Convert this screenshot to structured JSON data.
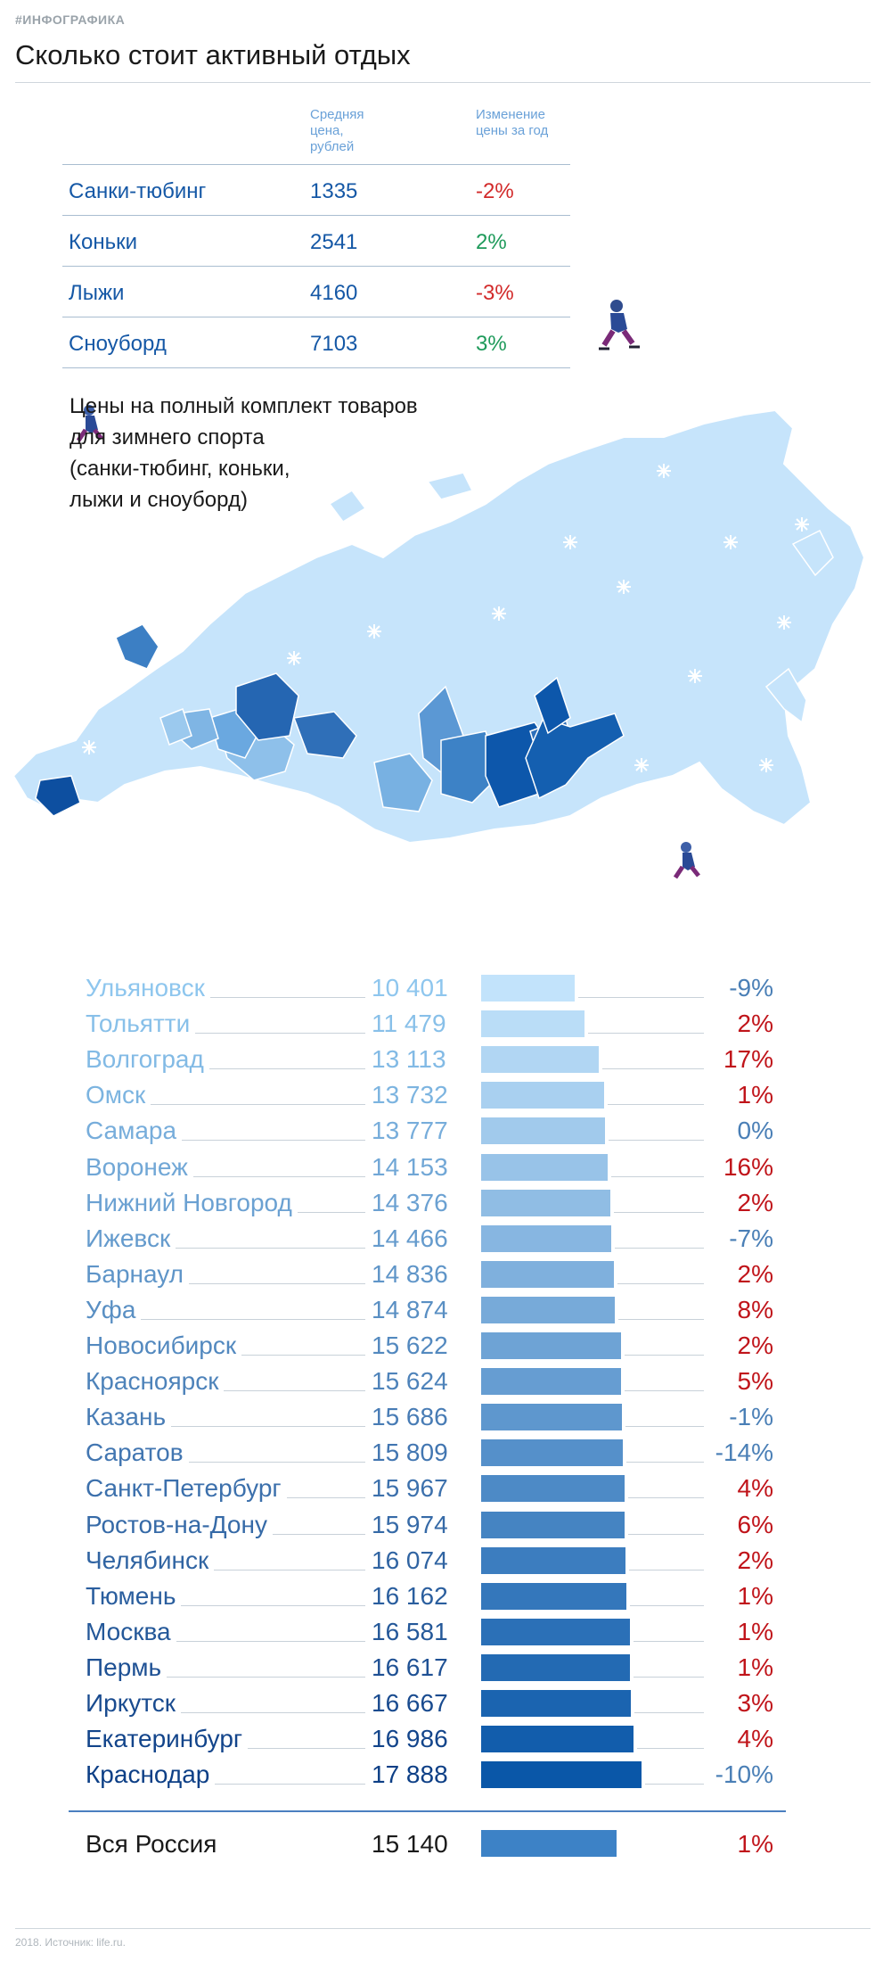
{
  "tag": "#ИНФОГРАФИКА",
  "title": "Сколько стоит активный отдых",
  "table": {
    "header_price": [
      "Средняя",
      "цена,",
      "рублей"
    ],
    "header_change": [
      "Изменение",
      "цены за год"
    ],
    "rows": [
      {
        "name": "Санки-тюбинг",
        "price": "1335",
        "change": "-2%",
        "sign": "neg"
      },
      {
        "name": "Коньки",
        "price": "2541",
        "change": "2%",
        "sign": "pos"
      },
      {
        "name": "Лыжи",
        "price": "4160",
        "change": "-3%",
        "sign": "neg"
      },
      {
        "name": "Сноуборд",
        "price": "7103",
        "change": "3%",
        "sign": "pos"
      }
    ]
  },
  "subtitle": [
    "Цены на полный комплект товаров",
    "для зимнего спорта",
    "(санки-тюбинг, коньки,",
    "лыжи и сноуборд)"
  ],
  "colors": {
    "map_base": "#c6e4fb",
    "bar_light": "#c2e3fb",
    "bar_dark": "#0a57a8",
    "text_light": "#8ec6ee",
    "text_dark": "#0d3f86",
    "increase": "#c0141a",
    "decrease": "#4a7fb6"
  },
  "chart_data": {
    "type": "bar",
    "orientation": "horizontal",
    "categories": [
      "Ульяновск",
      "Тольятти",
      "Волгоград",
      "Омск",
      "Самара",
      "Воронеж",
      "Нижний Новгород",
      "Ижевск",
      "Барнаул",
      "Уфа",
      "Новосибирск",
      "Красноярск",
      "Казань",
      "Саратов",
      "Санкт-Петербург",
      "Ростов-на-Дону",
      "Челябинск",
      "Тюмень",
      "Москва",
      "Пермь",
      "Иркутск",
      "Екатеринбург",
      "Краснодар"
    ],
    "values": [
      10401,
      11479,
      13113,
      13732,
      13777,
      14153,
      14376,
      14466,
      14836,
      14874,
      15622,
      15624,
      15686,
      15809,
      15967,
      15974,
      16074,
      16162,
      16581,
      16617,
      16667,
      16986,
      17888
    ],
    "value_labels": [
      "10 401",
      "11 479",
      "13 113",
      "13 732",
      "13 777",
      "14 153",
      "14 376",
      "14 466",
      "14 836",
      "14 874",
      "15 622",
      "15 624",
      "15 686",
      "15 809",
      "15 967",
      "15 974",
      "16 074",
      "16 162",
      "16 581",
      "16 617",
      "16 667",
      "16 986",
      "17 888"
    ],
    "changes": [
      "-9%",
      "2%",
      "17%",
      "1%",
      "0%",
      "16%",
      "2%",
      "-7%",
      "2%",
      "8%",
      "2%",
      "5%",
      "-1%",
      "-14%",
      "4%",
      "6%",
      "2%",
      "1%",
      "1%",
      "1%",
      "3%",
      "4%",
      "-10%"
    ],
    "change_values": [
      -9,
      2,
      17,
      1,
      0,
      16,
      2,
      -7,
      2,
      8,
      2,
      5,
      -1,
      -14,
      4,
      6,
      2,
      1,
      1,
      1,
      3,
      4,
      -10
    ],
    "total": {
      "name": "Вся Россия",
      "value": 15140,
      "value_label": "15 140",
      "change": "1%",
      "change_value": 1
    }
  },
  "footer": "2018. Источник: life.ru."
}
